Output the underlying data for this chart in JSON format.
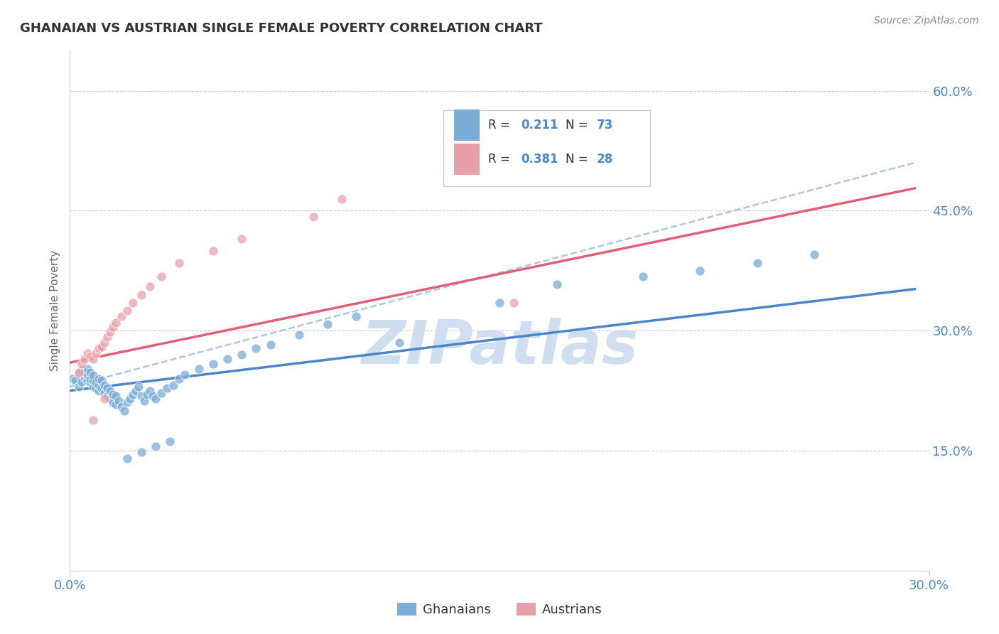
{
  "title": "GHANAIAN VS AUSTRIAN SINGLE FEMALE POVERTY CORRELATION CHART",
  "source": "Source: ZipAtlas.com",
  "ylabel": "Single Female Poverty",
  "y_ticks": [
    "15.0%",
    "30.0%",
    "45.0%",
    "60.0%"
  ],
  "y_tick_vals": [
    0.15,
    0.3,
    0.45,
    0.6
  ],
  "x_range": [
    0.0,
    0.3
  ],
  "y_range": [
    0.0,
    0.65
  ],
  "ghanaian_R": "0.211",
  "ghanaian_N": "73",
  "austrian_R": "0.381",
  "austrian_N": "28",
  "blue_color": "#7badd6",
  "pink_color": "#e8a0a8",
  "blue_line_color": "#4a86c8",
  "pink_line_color": "#e06075",
  "dashed_line_color": "#aec6e8",
  "label_color": "#4a86c8",
  "watermark_color": "#d0dff0",
  "ghanaians_x": [
    0.001,
    0.002,
    0.003,
    0.003,
    0.004,
    0.004,
    0.005,
    0.005,
    0.006,
    0.006,
    0.006,
    0.007,
    0.007,
    0.007,
    0.008,
    0.008,
    0.008,
    0.009,
    0.009,
    0.01,
    0.01,
    0.01,
    0.011,
    0.011,
    0.012,
    0.012,
    0.013,
    0.013,
    0.014,
    0.014,
    0.015,
    0.015,
    0.016,
    0.016,
    0.017,
    0.018,
    0.019,
    0.02,
    0.021,
    0.022,
    0.023,
    0.024,
    0.025,
    0.026,
    0.027,
    0.028,
    0.029,
    0.03,
    0.032,
    0.034,
    0.036,
    0.038,
    0.04,
    0.045,
    0.05,
    0.055,
    0.06,
    0.065,
    0.07,
    0.08,
    0.09,
    0.1,
    0.115,
    0.15,
    0.17,
    0.2,
    0.22,
    0.24,
    0.26,
    0.02,
    0.025,
    0.03,
    0.035
  ],
  "ghanaians_y": [
    0.24,
    0.238,
    0.245,
    0.23,
    0.25,
    0.236,
    0.242,
    0.248,
    0.238,
    0.245,
    0.252,
    0.235,
    0.24,
    0.248,
    0.23,
    0.238,
    0.244,
    0.228,
    0.235,
    0.225,
    0.232,
    0.24,
    0.228,
    0.238,
    0.222,
    0.232,
    0.218,
    0.228,
    0.215,
    0.225,
    0.21,
    0.22,
    0.208,
    0.218,
    0.212,
    0.205,
    0.2,
    0.21,
    0.215,
    0.22,
    0.225,
    0.23,
    0.218,
    0.212,
    0.22,
    0.225,
    0.218,
    0.215,
    0.222,
    0.228,
    0.232,
    0.24,
    0.245,
    0.252,
    0.258,
    0.265,
    0.27,
    0.278,
    0.282,
    0.295,
    0.308,
    0.318,
    0.285,
    0.335,
    0.358,
    0.368,
    0.375,
    0.385,
    0.395,
    0.14,
    0.148,
    0.155,
    0.162
  ],
  "austrians_x": [
    0.003,
    0.004,
    0.005,
    0.006,
    0.007,
    0.008,
    0.009,
    0.01,
    0.011,
    0.012,
    0.013,
    0.014,
    0.015,
    0.016,
    0.018,
    0.02,
    0.022,
    0.025,
    0.028,
    0.032,
    0.038,
    0.05,
    0.06,
    0.085,
    0.095,
    0.155,
    0.008,
    0.012
  ],
  "austrians_y": [
    0.248,
    0.258,
    0.265,
    0.272,
    0.268,
    0.265,
    0.272,
    0.278,
    0.28,
    0.285,
    0.292,
    0.298,
    0.305,
    0.31,
    0.318,
    0.325,
    0.335,
    0.345,
    0.355,
    0.368,
    0.385,
    0.4,
    0.415,
    0.442,
    0.465,
    0.335,
    0.188,
    0.215
  ],
  "ghanaian_line_x": [
    0.0,
    0.295
  ],
  "ghanaian_line_y": [
    0.225,
    0.352
  ],
  "austrian_line_x": [
    0.0,
    0.295
  ],
  "austrian_line_y": [
    0.26,
    0.478
  ],
  "dashed_line_x": [
    0.0,
    0.295
  ],
  "dashed_line_y": [
    0.23,
    0.51
  ]
}
